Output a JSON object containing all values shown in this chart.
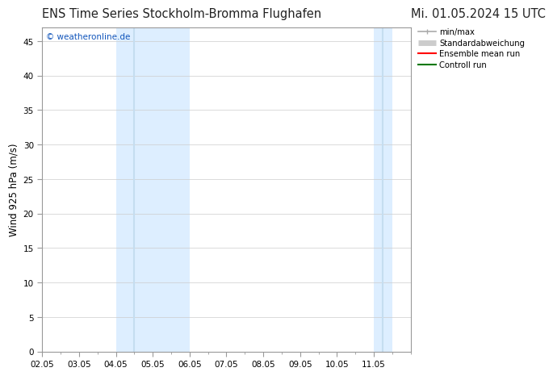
{
  "title_left": "ENS Time Series Stockholm-Bromma Flughafen",
  "title_right": "Mi. 01.05.2024 15 UTC",
  "ylabel": "Wind 925 hPa (m/s)",
  "watermark": "© weatheronline.de",
  "watermark_color": "#1155bb",
  "background_color": "#ffffff",
  "plot_bg_color": "#ffffff",
  "shaded_regions": [
    {
      "x_start": 4.0,
      "x_end": 6.0,
      "color": "#ddeeff"
    },
    {
      "x_start": 11.0,
      "x_end": 11.5,
      "color": "#ddeeff"
    }
  ],
  "shaded_stripes": [
    {
      "x": 4.5,
      "color": "#c5ddf0"
    },
    {
      "x": 11.25,
      "color": "#c5ddf0"
    }
  ],
  "x_ticks": [
    2,
    3,
    4,
    5,
    6,
    7,
    8,
    9,
    10,
    11
  ],
  "x_tick_labels": [
    "02.05",
    "03.05",
    "04.05",
    "05.05",
    "06.05",
    "07.05",
    "08.05",
    "09.05",
    "10.05",
    "11.05"
  ],
  "xlim": [
    2.0,
    12.0
  ],
  "ylim": [
    0,
    47
  ],
  "y_ticks": [
    0,
    5,
    10,
    15,
    20,
    25,
    30,
    35,
    40,
    45
  ],
  "grid_color": "#cccccc",
  "spine_color": "#999999",
  "legend_items": [
    {
      "label": "min/max",
      "color": "#aaaaaa",
      "lw": 1.2,
      "style": "minmax"
    },
    {
      "label": "Standardabweichung",
      "color": "#cccccc",
      "lw": 5,
      "style": "thick"
    },
    {
      "label": "Ensemble mean run",
      "color": "#ff0000",
      "lw": 1.5,
      "style": "line"
    },
    {
      "label": "Controll run",
      "color": "#007700",
      "lw": 1.5,
      "style": "line"
    }
  ],
  "tick_fontsize": 7.5,
  "label_fontsize": 8.5,
  "title_fontsize": 10.5,
  "watermark_fontsize": 7.5
}
